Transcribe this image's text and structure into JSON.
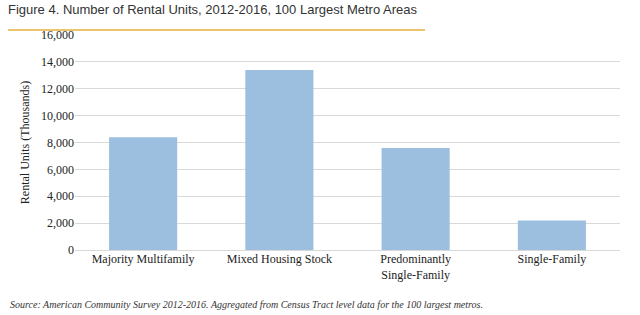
{
  "chart_data": {
    "type": "bar",
    "title": "Figure 4. Number of Rental Units, 2012-2016, 100 Largest Metro Areas",
    "y_label": "Rental Units (Thousands)",
    "categories": [
      "Majority Multifamily",
      "Mixed Housing Stock",
      "Predominantly Single-Family",
      "Single-Family"
    ],
    "values": [
      8400,
      13400,
      7600,
      2200
    ],
    "color": "#9dbfdf",
    "ylim": [
      0,
      16000
    ],
    "yticks": [
      0,
      {
        "value": 2000,
        "label": "2,000"
      },
      {
        "value": 4000,
        "label": "4,000"
      },
      {
        "value": 6000,
        "label": "6,000"
      },
      {
        "value": 8000,
        "label": "8,000"
      },
      {
        "value": 10000,
        "label": "10,000"
      },
      {
        "value": 12000,
        "label": "12,000"
      },
      {
        "value": 14000,
        "label": "14,000"
      },
      {
        "value": 16000,
        "label": "16,000"
      }
    ],
    "grid": true,
    "note": "Source: American Community Survey 2012-2016. Aggregated from Census Tract level data for the 100 largest metros."
  }
}
